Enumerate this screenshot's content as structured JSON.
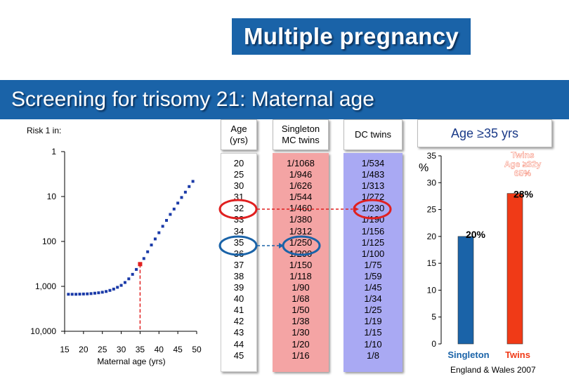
{
  "header": {
    "title": "Multiple pregnancy",
    "subtitle": "Screening for trisomy 21: Maternal age"
  },
  "table": {
    "age_header": "Age\n(yrs)",
    "singleton_header": "Singleton\nMC twins",
    "dc_header": "DC twins",
    "ages": [
      "20",
      "25",
      "30",
      "31",
      "32",
      "33",
      "34",
      "35",
      "36",
      "37",
      "38",
      "39",
      "40",
      "41",
      "42",
      "43",
      "44",
      "45"
    ],
    "singleton": [
      "1/1068",
      "1/946",
      "1/626",
      "1/544",
      "1/460",
      "1/380",
      "1/312",
      "1/250",
      "1/200",
      "1/150",
      "1/118",
      "1/90",
      "1/68",
      "1/50",
      "1/38",
      "1/30",
      "1/20",
      "1/16"
    ],
    "dc_twins": [
      "1/534",
      "1/483",
      "1/313",
      "1/272",
      "1/230",
      "1/190",
      "1/156",
      "1/125",
      "1/100",
      "1/75",
      "1/59",
      "1/45",
      "1/34",
      "1/25",
      "1/19",
      "1/15",
      "1/10",
      "1/8"
    ],
    "colors": {
      "singleton_bg": "#f4a4a4",
      "dc_bg": "#a9a9f3",
      "red_circle": "#e02020",
      "blue_circle": "#1a63a8"
    }
  },
  "bar_header": "Age ≥35 yrs",
  "footnote": "England & Wales 2007",
  "chart_data": [
    {
      "type": "scatter",
      "title": "Risk 1 in:",
      "xlabel": "Maternal age (yrs)",
      "ylabel": "",
      "x_ticks": [
        "15",
        "20",
        "25",
        "30",
        "35",
        "40",
        "45",
        "50"
      ],
      "y_ticks": [
        "1",
        "10",
        "100",
        "1,000",
        "10,000"
      ],
      "xlim": [
        15,
        50
      ],
      "ylim_log": [
        1,
        10000
      ],
      "y_scale": "log",
      "highlight_x": 35,
      "highlight_color": "#e02020",
      "marker_color": "#1a3aa8",
      "points": [
        {
          "x": 16,
          "y": 1500
        },
        {
          "x": 17,
          "y": 1500
        },
        {
          "x": 18,
          "y": 1500
        },
        {
          "x": 19,
          "y": 1490
        },
        {
          "x": 20,
          "y": 1480
        },
        {
          "x": 21,
          "y": 1470
        },
        {
          "x": 22,
          "y": 1450
        },
        {
          "x": 23,
          "y": 1420
        },
        {
          "x": 24,
          "y": 1390
        },
        {
          "x": 25,
          "y": 1350
        },
        {
          "x": 26,
          "y": 1300
        },
        {
          "x": 27,
          "y": 1230
        },
        {
          "x": 28,
          "y": 1150
        },
        {
          "x": 29,
          "y": 1050
        },
        {
          "x": 30,
          "y": 950
        },
        {
          "x": 31,
          "y": 820
        },
        {
          "x": 32,
          "y": 680
        },
        {
          "x": 33,
          "y": 540
        },
        {
          "x": 34,
          "y": 420
        },
        {
          "x": 35,
          "y": 320
        },
        {
          "x": 36,
          "y": 240
        },
        {
          "x": 37,
          "y": 170
        },
        {
          "x": 38,
          "y": 120
        },
        {
          "x": 39,
          "y": 88
        },
        {
          "x": 40,
          "y": 64
        },
        {
          "x": 41,
          "y": 46
        },
        {
          "x": 42,
          "y": 34
        },
        {
          "x": 43,
          "y": 25
        },
        {
          "x": 44,
          "y": 19
        },
        {
          "x": 45,
          "y": 14
        },
        {
          "x": 46,
          "y": 10.5
        },
        {
          "x": 47,
          "y": 8
        },
        {
          "x": 48,
          "y": 6
        },
        {
          "x": 49,
          "y": 4.6
        }
      ]
    },
    {
      "type": "bar",
      "ylabel": "%",
      "categories": [
        "Singleton",
        "Twins"
      ],
      "values": [
        20,
        28
      ],
      "data_labels": [
        "20%",
        "28%"
      ],
      "colors": [
        "#1a63a8",
        "#f03a17"
      ],
      "ylim": [
        0,
        35
      ],
      "y_ticks": [
        "0",
        "5",
        "10",
        "15",
        "20",
        "25",
        "30",
        "35"
      ],
      "annotation": "Twins\nAge ≥32y\n65%"
    }
  ]
}
